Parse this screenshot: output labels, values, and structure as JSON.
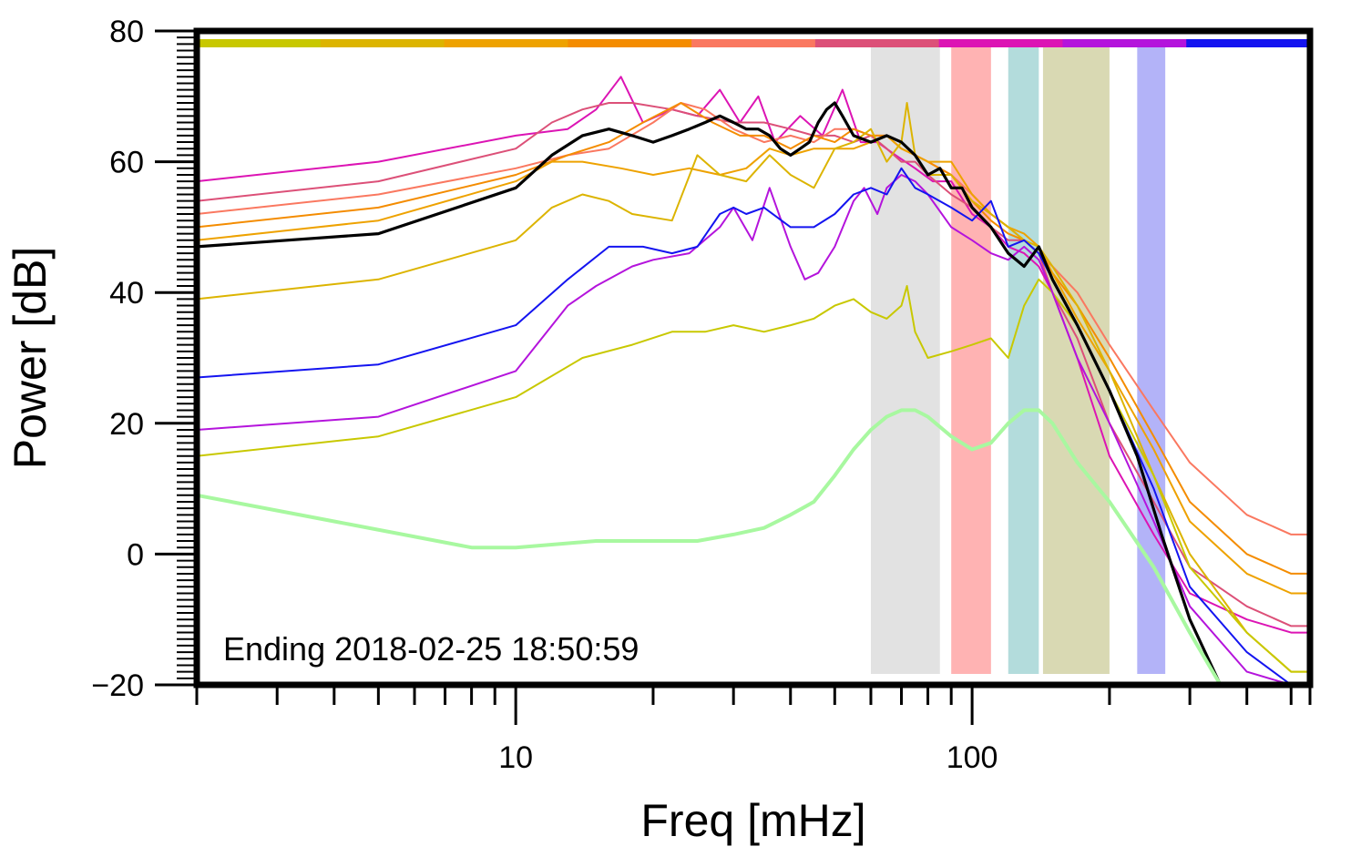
{
  "chart_data": {
    "type": "line",
    "xlabel": "Freq [mHz]",
    "ylabel": "Power [dB]",
    "xscale": "log",
    "xlim": [
      2,
      550
    ],
    "ylim": [
      -20,
      80
    ],
    "yticks": [
      -20,
      0,
      20,
      40,
      60,
      80
    ],
    "xtick_labels": [
      10,
      100
    ],
    "annotation": "Ending 2018-02-25 18:50:59",
    "grid": false,
    "legend": "none",
    "top_color_strip": [
      "#c8c800",
      "#dcb400",
      "#eea200",
      "#f48c00",
      "#fa7860",
      "#dc5078",
      "#dc14b4",
      "#b414dc",
      "#1414f0"
    ],
    "frequency_bands": [
      {
        "start": 60,
        "end": 85,
        "color": "#e2e2e2"
      },
      {
        "start": 90,
        "end": 110,
        "color": "#ffb3b3"
      },
      {
        "start": 120,
        "end": 140,
        "color": "#b3dcdc"
      },
      {
        "start": 143,
        "end": 200,
        "color": "#d9d9b3"
      },
      {
        "start": 230,
        "end": 265,
        "color": "#b3b3f8"
      }
    ],
    "series": [
      {
        "color": "#dc14b4",
        "width": 2,
        "x": [
          2,
          5,
          10,
          13,
          15,
          17,
          19,
          22,
          25,
          28,
          31,
          34,
          37,
          42,
          47,
          52,
          57,
          62,
          68,
          75,
          82,
          90,
          100,
          110,
          120,
          130,
          140,
          150,
          170,
          200,
          250,
          300,
          400,
          500,
          550
        ],
        "y": [
          57,
          60,
          64,
          65,
          68,
          73,
          66,
          68,
          67,
          71,
          66,
          70,
          63,
          67,
          64,
          71,
          63,
          63,
          61,
          59,
          57,
          57,
          52,
          50,
          47,
          46,
          44,
          40,
          30,
          15,
          3,
          -6,
          -10,
          -12,
          -12
        ]
      },
      {
        "color": "#dc5078",
        "width": 2,
        "x": [
          2,
          5,
          10,
          12,
          14,
          16,
          18,
          22,
          25,
          30,
          35,
          40,
          45,
          50,
          55,
          60,
          65,
          70,
          75,
          80,
          90,
          100,
          110,
          120,
          130,
          140,
          150,
          170,
          200,
          250,
          300,
          400,
          500,
          550
        ],
        "y": [
          54,
          57,
          62,
          66,
          68,
          69,
          69,
          68,
          67,
          66,
          66,
          65,
          64,
          64,
          63,
          64,
          62,
          60,
          60,
          58,
          55,
          53,
          50,
          48,
          48,
          46,
          40,
          33,
          20,
          8,
          -2,
          -8,
          -11,
          -11
        ]
      },
      {
        "color": "#fa7860",
        "width": 2,
        "x": [
          2,
          5,
          10,
          13,
          16,
          20,
          23,
          26,
          30,
          35,
          40,
          45,
          50,
          55,
          60,
          65,
          70,
          75,
          80,
          90,
          100,
          110,
          120,
          130,
          140,
          150,
          170,
          200,
          250,
          300,
          400,
          500,
          550
        ],
        "y": [
          52,
          55,
          59,
          61,
          62,
          66,
          69,
          68,
          65,
          63,
          64,
          63,
          65,
          65,
          64,
          64,
          63,
          61,
          60,
          58,
          55,
          52,
          50,
          48,
          46,
          44,
          40,
          32,
          22,
          14,
          6,
          3,
          3
        ]
      },
      {
        "color": "#f48c00",
        "width": 2,
        "x": [
          2,
          5,
          10,
          13,
          16,
          19,
          23,
          27,
          31,
          35,
          40,
          45,
          50,
          55,
          60,
          65,
          70,
          75,
          80,
          90,
          100,
          110,
          120,
          130,
          140,
          150,
          170,
          200,
          250,
          300,
          400,
          500,
          550
        ],
        "y": [
          50,
          53,
          58,
          61,
          63,
          66,
          69,
          66,
          64,
          64,
          62,
          64,
          63,
          65,
          64,
          64,
          62,
          61,
          60,
          58,
          54,
          51,
          49,
          48,
          46,
          43,
          38,
          30,
          18,
          8,
          0,
          -3,
          -3
        ]
      },
      {
        "color": "#eea200",
        "width": 2,
        "x": [
          2,
          5,
          10,
          12,
          14,
          17,
          20,
          24,
          28,
          32,
          36,
          40,
          45,
          50,
          55,
          60,
          65,
          70,
          75,
          80,
          90,
          100,
          110,
          120,
          130,
          140,
          150,
          170,
          200,
          250,
          300,
          400,
          500,
          550
        ],
        "y": [
          48,
          51,
          57,
          60,
          60,
          59,
          58,
          59,
          58,
          59,
          62,
          61,
          62,
          62,
          62,
          63,
          64,
          62,
          61,
          60,
          60,
          55,
          52,
          50,
          49,
          47,
          43,
          36,
          28,
          16,
          5,
          -3,
          -6,
          -6
        ]
      },
      {
        "color": "#dcb400",
        "width": 2,
        "x": [
          2,
          5,
          10,
          12,
          14,
          16,
          18,
          22,
          25,
          28,
          32,
          36,
          40,
          45,
          50,
          55,
          60,
          65,
          70,
          72,
          75,
          80,
          90,
          100,
          110,
          120,
          130,
          140,
          150,
          170,
          200,
          250,
          300,
          400,
          500,
          550
        ],
        "y": [
          39,
          42,
          48,
          53,
          55,
          54,
          52,
          51,
          61,
          58,
          57,
          61,
          58,
          56,
          62,
          63,
          65,
          60,
          63,
          69,
          61,
          58,
          58,
          54,
          52,
          50,
          48,
          47,
          44,
          38,
          28,
          12,
          0,
          -12,
          -18,
          -18
        ]
      },
      {
        "color": "#c8c800",
        "width": 2,
        "x": [
          2,
          5,
          10,
          14,
          18,
          22,
          26,
          30,
          35,
          40,
          45,
          50,
          55,
          60,
          65,
          70,
          72,
          75,
          80,
          90,
          100,
          110,
          120,
          130,
          140,
          150,
          170,
          200,
          250,
          300,
          400,
          500,
          550
        ],
        "y": [
          15,
          18,
          24,
          30,
          32,
          34,
          34,
          35,
          34,
          35,
          36,
          38,
          39,
          37,
          36,
          38,
          41,
          34,
          30,
          31,
          32,
          33,
          30,
          38,
          42,
          40,
          35,
          25,
          12,
          -2,
          -12,
          -18,
          -18
        ]
      },
      {
        "color": "#b414dc",
        "width": 2,
        "x": [
          2,
          5,
          10,
          13,
          15,
          18,
          20,
          24,
          28,
          30,
          33,
          36,
          40,
          43,
          46,
          50,
          55,
          58,
          62,
          65,
          70,
          75,
          80,
          90,
          100,
          110,
          120,
          130,
          140,
          150,
          170,
          200,
          250,
          300,
          400,
          500,
          550
        ],
        "y": [
          19,
          21,
          28,
          38,
          41,
          44,
          45,
          46,
          50,
          53,
          48,
          56,
          47,
          42,
          43,
          47,
          54,
          56,
          52,
          56,
          58,
          57,
          55,
          50,
          48,
          46,
          45,
          47,
          45,
          40,
          30,
          20,
          5,
          -8,
          -18,
          -20,
          -20
        ]
      },
      {
        "color": "#1414f0",
        "width": 2,
        "x": [
          2,
          5,
          10,
          13,
          16,
          19,
          22,
          25,
          28,
          30,
          32,
          35,
          40,
          45,
          50,
          55,
          60,
          65,
          70,
          75,
          80,
          90,
          100,
          110,
          120,
          130,
          140,
          150,
          170,
          200,
          250,
          300,
          400,
          500,
          550
        ],
        "y": [
          27,
          29,
          35,
          42,
          47,
          47,
          46,
          47,
          52,
          53,
          52,
          53,
          50,
          50,
          52,
          55,
          56,
          55,
          59,
          56,
          55,
          53,
          51,
          54,
          47,
          48,
          46,
          42,
          35,
          25,
          10,
          -5,
          -15,
          -20,
          -20
        ]
      },
      {
        "color": "#000000",
        "width": 3.2,
        "x": [
          2,
          5,
          10,
          12,
          14,
          16,
          18,
          20,
          22,
          24,
          26,
          28,
          30,
          32,
          34,
          36,
          38,
          40,
          42,
          44,
          46,
          48,
          50,
          52,
          55,
          60,
          65,
          70,
          75,
          80,
          85,
          90,
          95,
          100,
          110,
          120,
          130,
          140,
          150,
          170,
          200,
          230,
          260,
          300,
          350
        ],
        "y": [
          47,
          49,
          56,
          61,
          64,
          65,
          64,
          63,
          64,
          65,
          66,
          67,
          66,
          65,
          65,
          64,
          62,
          61,
          62,
          63,
          66,
          68,
          69,
          67,
          64,
          63,
          64,
          63,
          61,
          58,
          59,
          56,
          56,
          53,
          50,
          46,
          44,
          47,
          42,
          35,
          25,
          15,
          3,
          -10,
          -20
        ]
      },
      {
        "color": "#a8f8a0",
        "width": 4,
        "x": [
          2,
          4,
          8,
          10,
          15,
          20,
          25,
          30,
          35,
          40,
          45,
          50,
          55,
          60,
          65,
          70,
          75,
          80,
          90,
          100,
          110,
          120,
          130,
          140,
          150,
          170,
          200,
          250,
          300,
          350
        ],
        "y": [
          9,
          5,
          1,
          1,
          2,
          2,
          2,
          3,
          4,
          6,
          8,
          12,
          16,
          19,
          21,
          22,
          22,
          21,
          18,
          16,
          17,
          20,
          22,
          22,
          20,
          14,
          8,
          -2,
          -12,
          -20
        ]
      }
    ]
  }
}
